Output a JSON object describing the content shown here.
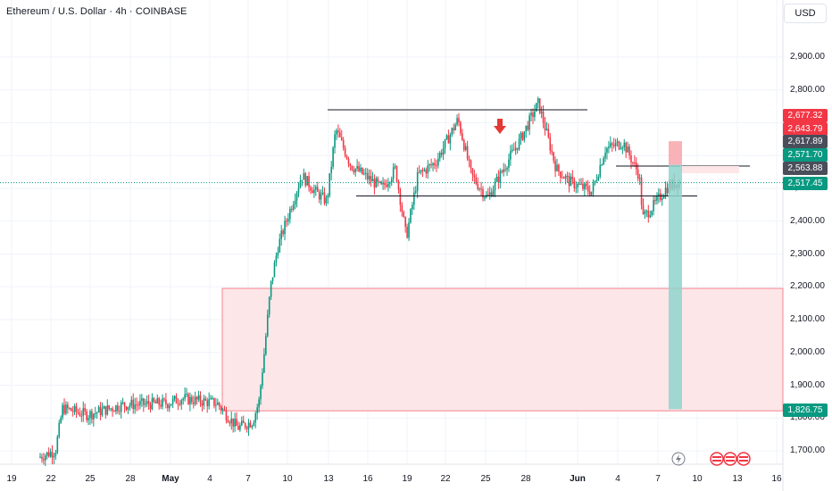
{
  "header": {
    "title": "Ethereum / U.S. Dollar · 4h · COINBASE",
    "currency_button": "USD"
  },
  "colors": {
    "up": "#089981",
    "down": "#f23645",
    "zone_fill": "#fde6e8",
    "zone_border": "#f4868f",
    "target": "#8fd3cc",
    "stop": "#f8a5aa"
  },
  "chart_data": {
    "type": "candlestick",
    "symbol": "Ethereum / U.S. Dollar",
    "timeframe": "4h",
    "exchange": "COINBASE",
    "y_ticks": [
      "2,900.00",
      "2,800.00",
      "2,700.00",
      "2,600.00",
      "2,500.00",
      "2,400.00",
      "2,300.00",
      "2,200.00",
      "2,100.00",
      "2,000.00",
      "1,900.00",
      "1,800.00",
      "1,700.00"
    ],
    "x_ticks": [
      "19",
      "22",
      "25",
      "28",
      "May",
      "4",
      "7",
      "10",
      "13",
      "16",
      "19",
      "22",
      "25",
      "28",
      "Jun",
      "4",
      "7",
      "10",
      "13",
      "16"
    ],
    "ylim": [
      1660,
      3000
    ],
    "price_tags": [
      {
        "label": "2,677.32",
        "value": 2677.32,
        "color": "#f23645"
      },
      {
        "label": "2,643.79",
        "value": 2643.79,
        "color": "#f23645"
      },
      {
        "label": "2,617.89",
        "value": 2617.89,
        "color": "#4a4e5a"
      },
      {
        "label": "2,571.70",
        "value": 2571.7,
        "color": "#089981"
      },
      {
        "label": "2,563.88",
        "value": 2563.88,
        "color": "#4a4e5a"
      },
      {
        "label": "2,517.45",
        "value": 2517.45,
        "color": "#089981"
      },
      {
        "label": "1,826.75",
        "value": 1826.75,
        "color": "#089981"
      }
    ],
    "demand_zone": {
      "from_date": "May 5",
      "top": 2195,
      "bottom": 1822
    },
    "range_high": 2738,
    "range_low": 2477,
    "resistance": 2563.88,
    "last_price": 2517.45,
    "position": {
      "entry": 2571.7,
      "stop": 2643.79,
      "target": 1826.75
    },
    "annotation": "bearish-arrow"
  }
}
